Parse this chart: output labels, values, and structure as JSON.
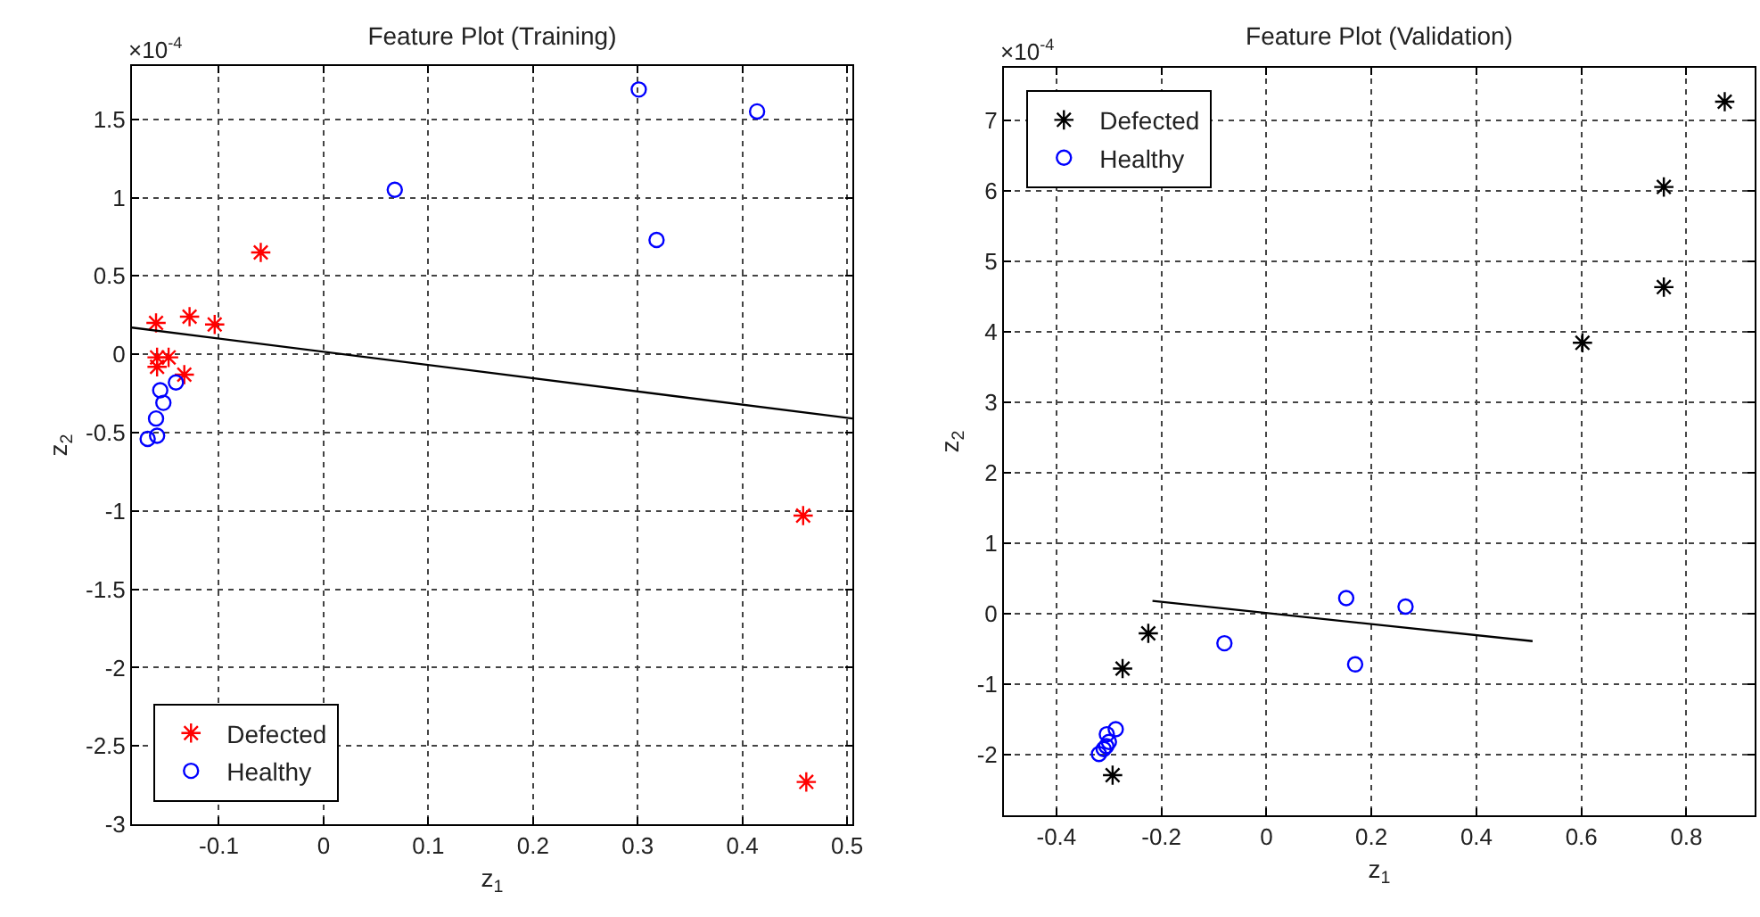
{
  "chart_data": [
    {
      "type": "scatter",
      "title": "Feature Plot (Training)",
      "xlabel": "z$_{1}$",
      "ylabel": "z$_{2}$",
      "annotations": [
        "×10$^{-4}$"
      ],
      "xlim": [
        -0.183,
        0.505
      ],
      "ylim": [
        -3,
        1.84
      ],
      "xticks": [
        -0.1,
        0,
        0.1,
        0.2,
        0.3,
        0.4,
        0.5
      ],
      "yticks": [
        -3,
        -2.5,
        -2,
        -1.5,
        -1,
        -0.5,
        0,
        0.5,
        1,
        1.5
      ],
      "grid": true,
      "legend": "bottom left",
      "series": [
        {
          "name": "Defected",
          "color": "#ff0000",
          "marker": "cross",
          "x": [
            -0.06,
            -0.16,
            -0.128,
            -0.104,
            -0.159,
            -0.148,
            -0.159,
            -0.133,
            0.458,
            0.461
          ],
          "values": [
            0.65,
            0.2,
            0.24,
            0.19,
            -0.02,
            -0.02,
            -0.08,
            -0.13,
            -1.03,
            -2.73
          ]
        },
        {
          "name": "Healthy",
          "color": "#0000ff",
          "marker": "circle",
          "x": [
            0.301,
            0.414,
            0.068,
            0.318,
            -0.141,
            -0.156,
            -0.153,
            -0.16,
            -0.168,
            -0.159
          ],
          "values": [
            1.69,
            1.55,
            1.05,
            0.73,
            -0.18,
            -0.23,
            -0.31,
            -0.41,
            -0.54,
            -0.52
          ]
        },
        {
          "type": "line",
          "color": "#000000",
          "marker": "none",
          "x": [
            -0.183,
            0.505
          ],
          "values": [
            0.17,
            -0.41
          ]
        }
      ]
    },
    {
      "type": "scatter",
      "title": "Feature Plot (Validation)",
      "xlabel": "z$_{1}$",
      "ylabel": "z$_{2}$",
      "annotations": [
        "×10$^{-4}$"
      ],
      "xlim": [
        -0.5,
        0.93
      ],
      "ylim": [
        -2.86,
        7.74
      ],
      "xticks": [
        -0.4,
        -0.2,
        0,
        0.2,
        0.4,
        0.6,
        0.8
      ],
      "yticks": [
        -2,
        -1,
        0,
        1,
        2,
        3,
        4,
        5,
        6,
        7
      ],
      "grid": true,
      "legend": "top left",
      "series": [
        {
          "name": "Defected",
          "color": "#000000",
          "marker": "cross",
          "x": [
            0.873,
            0.757,
            0.757,
            0.602,
            -0.225,
            -0.274,
            -0.293
          ],
          "values": [
            7.26,
            6.05,
            4.63,
            3.84,
            -0.28,
            -0.78,
            -2.29
          ]
        },
        {
          "name": "Healthy",
          "color": "#0000ff",
          "marker": "circle",
          "x": [
            0.152,
            0.265,
            -0.08,
            0.169,
            -0.287,
            -0.304,
            -0.3,
            -0.31,
            -0.319,
            -0.305
          ],
          "values": [
            0.22,
            0.1,
            -0.42,
            -0.72,
            -1.64,
            -1.71,
            -1.82,
            -1.92,
            -1.99,
            -1.88
          ]
        },
        {
          "type": "line",
          "color": "#000000",
          "marker": "none",
          "x": [
            -0.217,
            0.507
          ],
          "values": [
            0.18,
            -0.39
          ]
        }
      ]
    }
  ]
}
